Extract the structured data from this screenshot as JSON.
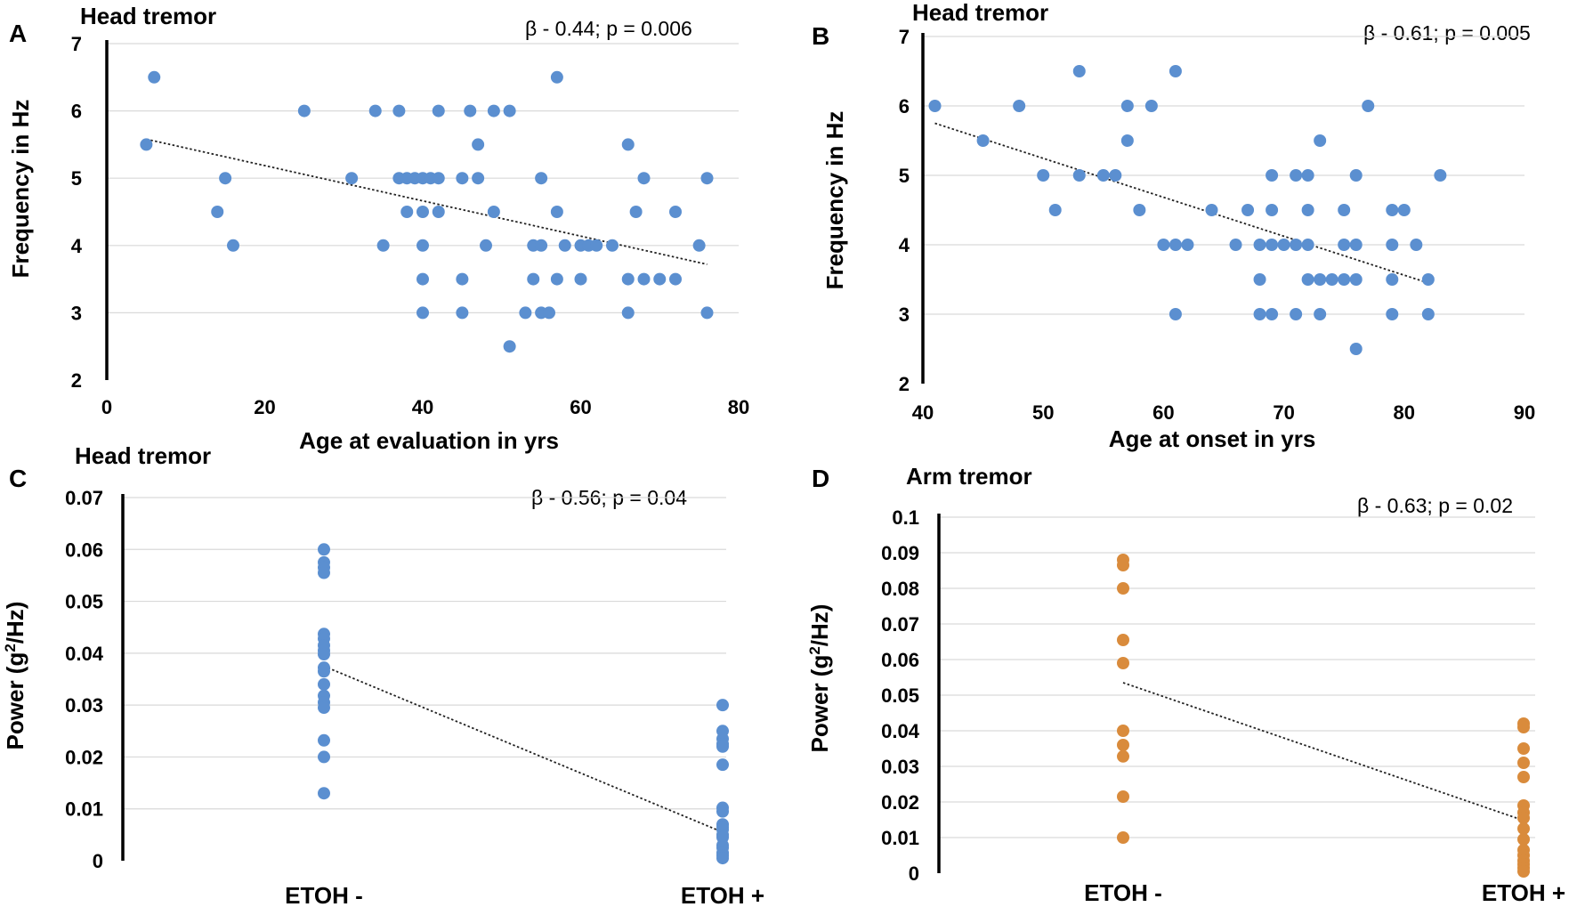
{
  "chart_data": [
    {
      "id": "A",
      "type": "scatter",
      "title": "Head tremor",
      "stat": "β - 0.44; p = 0.006",
      "xlabel": "Age at evaluation in yrs",
      "ylabel": "Frequency in Hz",
      "xlim": [
        0,
        80
      ],
      "ylim": [
        2,
        7
      ],
      "xticks": [
        "0",
        "20",
        "40",
        "60",
        "80"
      ],
      "yticks": [
        "2",
        "3",
        "4",
        "5",
        "6",
        "7"
      ],
      "color": "#5b8fd0",
      "trend": [
        [
          5,
          5.58
        ],
        [
          76,
          3.72
        ]
      ],
      "points": [
        [
          5,
          5.5
        ],
        [
          6,
          6.5
        ],
        [
          14,
          4.5
        ],
        [
          15,
          5
        ],
        [
          16,
          4
        ],
        [
          25,
          6
        ],
        [
          31,
          5
        ],
        [
          34,
          6
        ],
        [
          35,
          4
        ],
        [
          37,
          6
        ],
        [
          37,
          5
        ],
        [
          38,
          5
        ],
        [
          38,
          4.5
        ],
        [
          39,
          5
        ],
        [
          40,
          5
        ],
        [
          40,
          4.5
        ],
        [
          40,
          4
        ],
        [
          40,
          3.5
        ],
        [
          40,
          3
        ],
        [
          41,
          5
        ],
        [
          42,
          5
        ],
        [
          42,
          4.5
        ],
        [
          42,
          6
        ],
        [
          45,
          5
        ],
        [
          45,
          3.5
        ],
        [
          45,
          3
        ],
        [
          46,
          6
        ],
        [
          47,
          5.5
        ],
        [
          47,
          5
        ],
        [
          48,
          4
        ],
        [
          49,
          6
        ],
        [
          49,
          4.5
        ],
        [
          51,
          6
        ],
        [
          51,
          2.5
        ],
        [
          53,
          3
        ],
        [
          54,
          4
        ],
        [
          54,
          3.5
        ],
        [
          55,
          5
        ],
        [
          55,
          4
        ],
        [
          55,
          3
        ],
        [
          56,
          3
        ],
        [
          57,
          6.5
        ],
        [
          57,
          4.5
        ],
        [
          57,
          3.5
        ],
        [
          58,
          4
        ],
        [
          60,
          4
        ],
        [
          60,
          3.5
        ],
        [
          61,
          4
        ],
        [
          62,
          4
        ],
        [
          64,
          4
        ],
        [
          66,
          5.5
        ],
        [
          66,
          3.5
        ],
        [
          66,
          3
        ],
        [
          67,
          4.5
        ],
        [
          68,
          5
        ],
        [
          68,
          3.5
        ],
        [
          70,
          3.5
        ],
        [
          72,
          4.5
        ],
        [
          72,
          3.5
        ],
        [
          75,
          4
        ],
        [
          76,
          5
        ],
        [
          76,
          3
        ]
      ]
    },
    {
      "id": "B",
      "type": "scatter",
      "title": "Head tremor",
      "stat": "β - 0.61; p = 0.005",
      "xlabel": "Age at onset in yrs",
      "ylabel": "Frequency in Hz",
      "xlim": [
        40,
        90
      ],
      "ylim": [
        2,
        7
      ],
      "xticks": [
        "40",
        "50",
        "60",
        "70",
        "80",
        "90"
      ],
      "yticks": [
        "2",
        "3",
        "4",
        "5",
        "6",
        "7"
      ],
      "color": "#5b8fd0",
      "trend": [
        [
          41,
          5.75
        ],
        [
          82,
          3.45
        ]
      ],
      "points": [
        [
          41,
          6
        ],
        [
          45,
          5.5
        ],
        [
          48,
          6
        ],
        [
          50,
          5
        ],
        [
          51,
          4.5
        ],
        [
          53,
          6.5
        ],
        [
          53,
          5
        ],
        [
          55,
          5
        ],
        [
          56,
          5
        ],
        [
          57,
          6
        ],
        [
          57,
          5.5
        ],
        [
          58,
          4.5
        ],
        [
          59,
          6
        ],
        [
          60,
          4
        ],
        [
          61,
          6.5
        ],
        [
          61,
          4
        ],
        [
          61,
          3
        ],
        [
          62,
          4
        ],
        [
          64,
          4.5
        ],
        [
          66,
          4
        ],
        [
          67,
          4.5
        ],
        [
          68,
          4
        ],
        [
          68,
          3.5
        ],
        [
          68,
          3
        ],
        [
          69,
          5
        ],
        [
          69,
          4.5
        ],
        [
          69,
          4
        ],
        [
          69,
          3
        ],
        [
          70,
          4
        ],
        [
          71,
          5
        ],
        [
          71,
          4
        ],
        [
          71,
          3
        ],
        [
          72,
          5
        ],
        [
          72,
          4.5
        ],
        [
          72,
          4
        ],
        [
          72,
          3.5
        ],
        [
          73,
          5.5
        ],
        [
          73,
          3.5
        ],
        [
          73,
          3
        ],
        [
          74,
          3.5
        ],
        [
          75,
          4.5
        ],
        [
          75,
          4
        ],
        [
          75,
          3.5
        ],
        [
          76,
          5
        ],
        [
          76,
          4
        ],
        [
          76,
          3.5
        ],
        [
          76,
          2.5
        ],
        [
          77,
          6
        ],
        [
          79,
          4.5
        ],
        [
          79,
          4
        ],
        [
          79,
          3.5
        ],
        [
          79,
          3
        ],
        [
          80,
          4.5
        ],
        [
          81,
          4
        ],
        [
          82,
          3.5
        ],
        [
          82,
          3
        ],
        [
          83,
          5
        ]
      ]
    },
    {
      "id": "C",
      "type": "strip",
      "title": "Head tremor",
      "stat": "β - 0.56; p = 0.04",
      "ylabel": "Power (g²/Hz)",
      "categories": [
        "ETOH -",
        "ETOH +"
      ],
      "ylim": [
        0,
        0.07
      ],
      "yticks": [
        "0",
        "0.01",
        "0.02",
        "0.03",
        "0.04",
        "0.05",
        "0.06",
        "0.07"
      ],
      "color": "#5b8fd0",
      "trend": [
        0.0375,
        0.0055
      ],
      "groups": [
        [
          0.06,
          0.0575,
          0.0565,
          0.0555,
          0.0437,
          0.0428,
          0.0415,
          0.0405,
          0.0398,
          0.0372,
          0.0365,
          0.034,
          0.0318,
          0.0305,
          0.0295,
          0.0232,
          0.02,
          0.013
        ],
        [
          0.03,
          0.025,
          0.0235,
          0.0225,
          0.022,
          0.0185,
          0.0102,
          0.0095,
          0.007,
          0.0065,
          0.006,
          0.005,
          0.0045,
          0.003,
          0.0025,
          0.0015,
          0.001,
          0.0005
        ]
      ]
    },
    {
      "id": "D",
      "type": "strip",
      "title": "Arm tremor",
      "stat": "β - 0.63; p = 0.02",
      "ylabel": "Power (g²/Hz)",
      "categories": [
        "ETOH -",
        "ETOH +"
      ],
      "ylim": [
        0,
        0.1
      ],
      "yticks": [
        "0",
        "0.01",
        "0.02",
        "0.03",
        "0.04",
        "0.05",
        "0.06",
        "0.07",
        "0.08",
        "0.09",
        "0.1"
      ],
      "color": "#d98b3c",
      "trend": [
        0.0535,
        0.0148
      ],
      "groups": [
        [
          0.088,
          0.0865,
          0.08,
          0.0655,
          0.059,
          0.04,
          0.036,
          0.0328,
          0.0215,
          0.01
        ],
        [
          0.042,
          0.041,
          0.035,
          0.031,
          0.027,
          0.019,
          0.017,
          0.0155,
          0.0125,
          0.0095,
          0.0065,
          0.005,
          0.0035,
          0.0025,
          0.0015,
          0.0005
        ]
      ]
    }
  ]
}
